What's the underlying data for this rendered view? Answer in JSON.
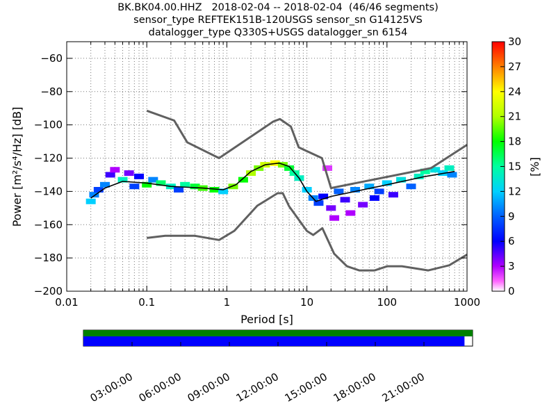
{
  "title": {
    "line1": "BK.BK04.00.HHZ   2018-02-04 -- 2018-02-04  (46/46 segments)",
    "line2": "sensor_type REFTEK151B-120USGS sensor_sn G14125VS",
    "line3": "datalogger_type Q330S+USGS datalogger_sn 6154"
  },
  "colors": {
    "nlnm_nhnm": "#606060",
    "mode": "#000000",
    "mean": "#000000",
    "coverage_bar": "#008000",
    "segments_bar": "#0000ff"
  },
  "chart_data": {
    "type": "heatmap",
    "subtype": "probabilistic power spectral density",
    "xlabel": "Period [s]",
    "ylabel": "Power [m²/s⁴/Hz] [dB]",
    "xscale": "log",
    "xlim": [
      0.01,
      1000
    ],
    "ylim": [
      -200,
      -50
    ],
    "x_ticks": [
      "0.01",
      "0.1",
      "1",
      "10",
      "100",
      "1000"
    ],
    "y_ticks": [
      "−60",
      "−80",
      "−100",
      "−120",
      "−140",
      "−160",
      "−180",
      "−200"
    ],
    "grid": true,
    "colorbar": {
      "label": "[%]",
      "min": 0,
      "max": 30,
      "ticks": [
        "0",
        "3",
        "6",
        "9",
        "12",
        "15",
        "18",
        "21",
        "24",
        "27",
        "30"
      ]
    },
    "series": [
      {
        "role": "high_noise_model",
        "x": [
          0.1,
          0.22,
          0.32,
          0.8,
          3.8,
          4.6,
          6.3,
          7.9,
          15.4,
          20,
          354.8,
          1000
        ],
        "y": [
          -91.5,
          -97.4,
          -110.5,
          -120.0,
          -98.0,
          -96.5,
          -101.0,
          -113.5,
          -120.0,
          -138.0,
          -126.0,
          -112.0
        ]
      },
      {
        "role": "low_noise_model",
        "x": [
          0.1,
          0.17,
          0.4,
          0.8,
          1.24,
          2.4,
          4.3,
          5.0,
          6.0,
          10.0,
          12.0,
          15.6,
          21.9,
          31.6,
          45,
          70,
          101,
          154,
          328,
          600,
          1000
        ],
        "y": [
          -168.0,
          -166.7,
          -166.7,
          -169.2,
          -163.7,
          -148.6,
          -141.1,
          -141.1,
          -149.0,
          -163.8,
          -166.2,
          -162.1,
          -177.5,
          -185.0,
          -187.5,
          -187.5,
          -185.0,
          -185.0,
          -187.5,
          -184.4,
          -178.0
        ]
      },
      {
        "role": "mode",
        "x": [
          0.02,
          0.03,
          0.05,
          0.1,
          0.2,
          0.5,
          0.9,
          1.3,
          2,
          3,
          4.5,
          6,
          8,
          10,
          13,
          20,
          40,
          100,
          300,
          700
        ],
        "y": [
          -144,
          -138,
          -134,
          -135,
          -137,
          -138,
          -139,
          -136,
          -128,
          -124,
          -123,
          -125,
          -132,
          -140,
          -146,
          -143,
          -140,
          -136,
          -131,
          -128
        ]
      }
    ],
    "density_cells": [
      {
        "x": 0.02,
        "y": -146,
        "pct": 12
      },
      {
        "x": 0.022,
        "y": -142,
        "pct": 10
      },
      {
        "x": 0.025,
        "y": -139,
        "pct": 8
      },
      {
        "x": 0.03,
        "y": -136,
        "pct": 10
      },
      {
        "x": 0.035,
        "y": -130,
        "pct": 5
      },
      {
        "x": 0.04,
        "y": -127,
        "pct": 3
      },
      {
        "x": 0.05,
        "y": -133,
        "pct": 14
      },
      {
        "x": 0.06,
        "y": -129,
        "pct": 4
      },
      {
        "x": 0.07,
        "y": -137,
        "pct": 8
      },
      {
        "x": 0.08,
        "y": -131,
        "pct": 6
      },
      {
        "x": 0.1,
        "y": -136,
        "pct": 18
      },
      {
        "x": 0.12,
        "y": -133,
        "pct": 10
      },
      {
        "x": 0.15,
        "y": -135,
        "pct": 16
      },
      {
        "x": 0.2,
        "y": -137,
        "pct": 14
      },
      {
        "x": 0.25,
        "y": -139,
        "pct": 8
      },
      {
        "x": 0.3,
        "y": -136,
        "pct": 15
      },
      {
        "x": 0.4,
        "y": -137,
        "pct": 17
      },
      {
        "x": 0.5,
        "y": -138,
        "pct": 19
      },
      {
        "x": 0.7,
        "y": -139,
        "pct": 18
      },
      {
        "x": 0.9,
        "y": -140,
        "pct": 12
      },
      {
        "x": 1.2,
        "y": -137,
        "pct": 20
      },
      {
        "x": 1.6,
        "y": -133,
        "pct": 18
      },
      {
        "x": 2,
        "y": -129,
        "pct": 21
      },
      {
        "x": 2.5,
        "y": -126,
        "pct": 20
      },
      {
        "x": 3,
        "y": -124,
        "pct": 22
      },
      {
        "x": 4,
        "y": -123,
        "pct": 24
      },
      {
        "x": 5,
        "y": -124,
        "pct": 20
      },
      {
        "x": 6,
        "y": -126,
        "pct": 17
      },
      {
        "x": 7,
        "y": -129,
        "pct": 15
      },
      {
        "x": 8,
        "y": -132,
        "pct": 14
      },
      {
        "x": 10,
        "y": -139,
        "pct": 12
      },
      {
        "x": 12,
        "y": -144,
        "pct": 10
      },
      {
        "x": 14,
        "y": -147,
        "pct": 8
      },
      {
        "x": 16,
        "y": -143,
        "pct": 6
      },
      {
        "x": 18,
        "y": -126,
        "pct": 2
      },
      {
        "x": 20,
        "y": -150,
        "pct": 4
      },
      {
        "x": 22,
        "y": -156,
        "pct": 3
      },
      {
        "x": 25,
        "y": -140,
        "pct": 9
      },
      {
        "x": 30,
        "y": -145,
        "pct": 5
      },
      {
        "x": 35,
        "y": -153,
        "pct": 3
      },
      {
        "x": 40,
        "y": -139,
        "pct": 10
      },
      {
        "x": 50,
        "y": -148,
        "pct": 4
      },
      {
        "x": 60,
        "y": -137,
        "pct": 11
      },
      {
        "x": 70,
        "y": -144,
        "pct": 6
      },
      {
        "x": 80,
        "y": -140,
        "pct": 8
      },
      {
        "x": 100,
        "y": -135,
        "pct": 12
      },
      {
        "x": 120,
        "y": -142,
        "pct": 5
      },
      {
        "x": 150,
        "y": -133,
        "pct": 13
      },
      {
        "x": 200,
        "y": -137,
        "pct": 9
      },
      {
        "x": 250,
        "y": -131,
        "pct": 14
      },
      {
        "x": 300,
        "y": -128,
        "pct": 15
      },
      {
        "x": 400,
        "y": -127,
        "pct": 13
      },
      {
        "x": 500,
        "y": -129,
        "pct": 12
      },
      {
        "x": 600,
        "y": -126,
        "pct": 14
      },
      {
        "x": 650,
        "y": -130,
        "pct": 10
      }
    ]
  },
  "time_axis": {
    "labels": [
      "03:00:00",
      "06:00:00",
      "09:00:00",
      "12:00:00",
      "15:00:00",
      "18:00:00",
      "21:00:00"
    ],
    "hours": [
      3,
      6,
      9,
      12,
      15,
      18,
      21
    ],
    "span_hours": 24,
    "coverage_end_hour": 24,
    "segments_end_hour": 23.5
  }
}
